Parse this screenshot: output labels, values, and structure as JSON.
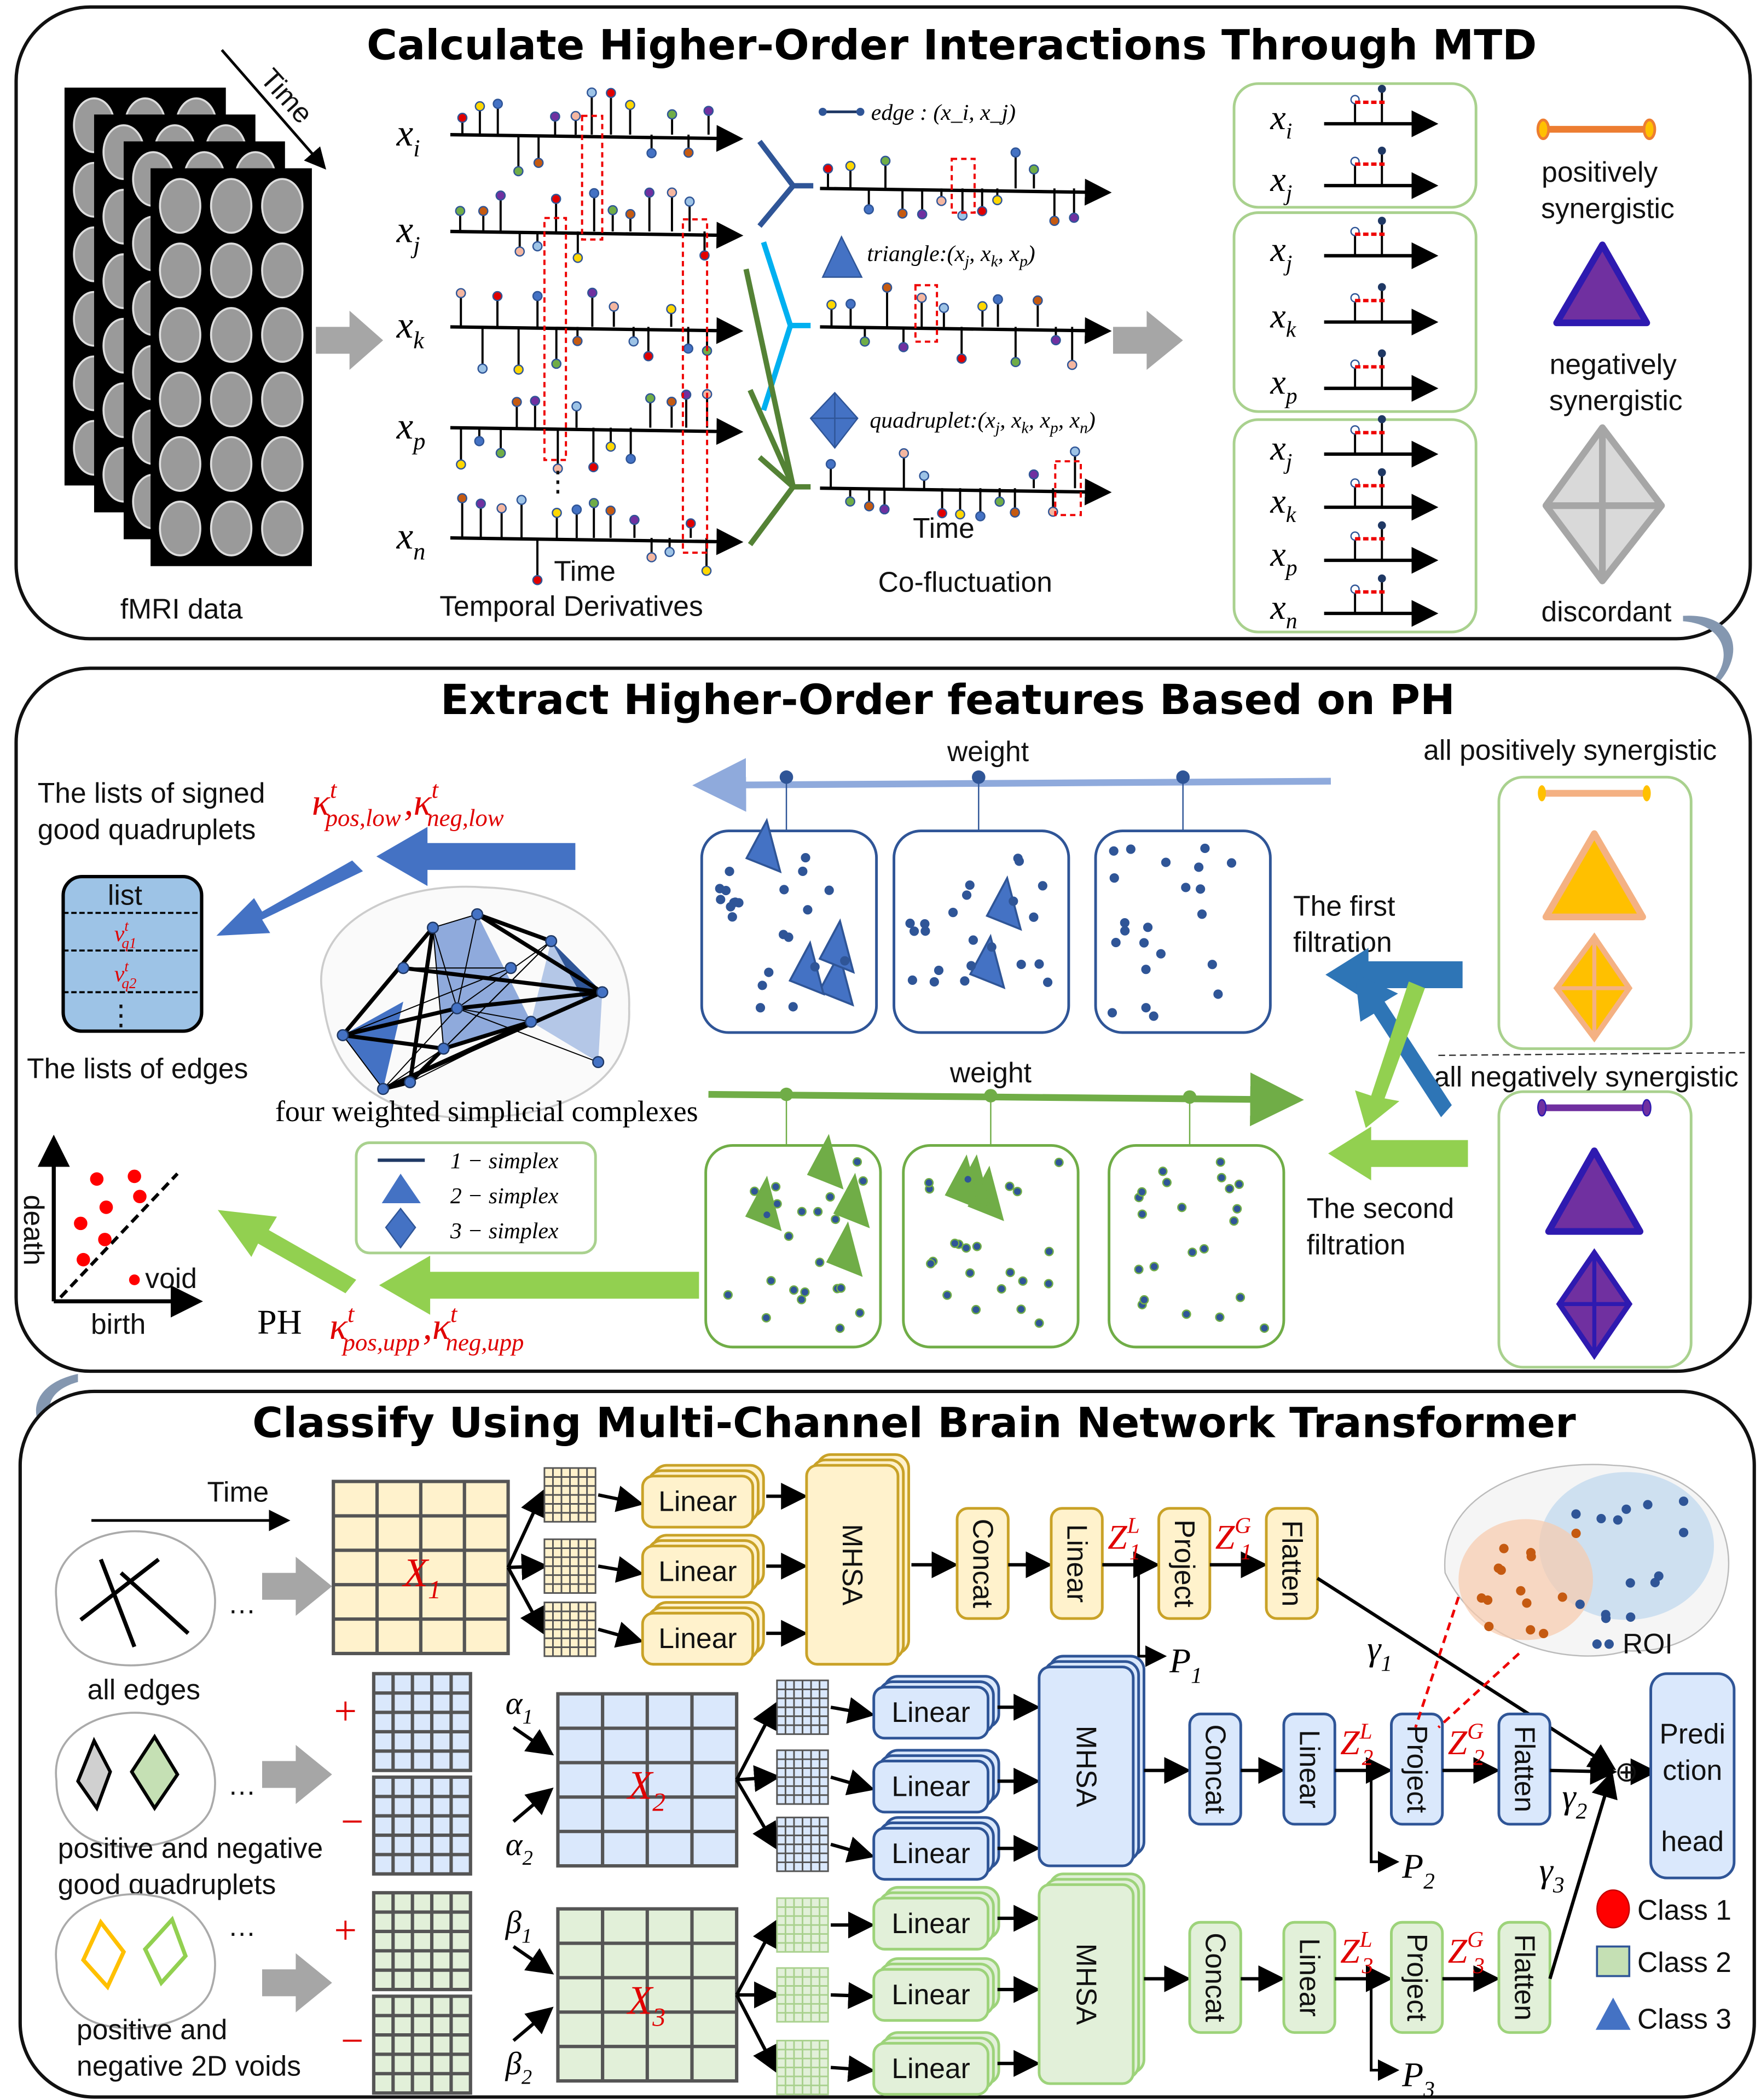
{
  "panel1": {
    "title": "Calculate Higher-Order Interactions Through MTD",
    "time_arrow_label": "Time",
    "fmri_label": "fMRI data",
    "signals": [
      {
        "base": "x",
        "sub": "i"
      },
      {
        "base": "x",
        "sub": "j"
      },
      {
        "base": "x",
        "sub": "k"
      },
      {
        "base": "x",
        "sub": "p"
      },
      {
        "base": "x",
        "sub": "n"
      }
    ],
    "ellipsis": "⋮",
    "signal_time_label": "Time",
    "temporal_label": "Temporal Derivatives",
    "edge_legend": {
      "name": "edge :",
      "tuple": "(x_i, x_j)",
      "subs": [
        "i",
        "j"
      ]
    },
    "triangle_legend": {
      "name": "triangle:",
      "subs": [
        "j",
        "k",
        "p"
      ]
    },
    "quadruplet_legend": {
      "name": "quadruplet:",
      "subs": [
        "j",
        "k",
        "p",
        "n"
      ]
    },
    "cofluct_time_label": "Time",
    "cofluct_label": "Co-fluctuation",
    "right_boxes": [
      {
        "subs": [
          "i",
          "j"
        ]
      },
      {
        "subs": [
          "j",
          "k",
          "p"
        ]
      },
      {
        "subs": [
          "j",
          "k",
          "p",
          "n"
        ]
      }
    ],
    "legend": {
      "positive": [
        "positively",
        "synergistic"
      ],
      "negative": [
        "negatively",
        "synergistic"
      ],
      "discordant": "discordant"
    }
  },
  "panel2": {
    "title": "Extract Higher-Order features Based on PH",
    "weight_top": "weight",
    "weight_bottom": "weight",
    "lists_signed": [
      "The lists of signed",
      "good quadruplets"
    ],
    "kappa_low": [
      {
        "sym": "κ",
        "sup": "t",
        "sub": "pos,low"
      },
      {
        "sym": "κ",
        "sup": "t",
        "sub": "neg,low"
      }
    ],
    "kappa_upp": [
      {
        "sym": "κ",
        "sup": "t",
        "sub": "pos,upp"
      },
      {
        "sym": "κ",
        "sup": "t",
        "sub": "neg,upp"
      }
    ],
    "kappa_sep": ",",
    "list_box": {
      "header": "list",
      "items": [
        {
          "sym": "v",
          "sup": "t",
          "sub": "q1"
        },
        {
          "sym": "v",
          "sup": "t",
          "sub": "q2"
        }
      ],
      "ellipsis": "⋮"
    },
    "lists_edges": "The lists of edges",
    "complexes_label": "four weighted simplicial complexes",
    "simplex_legend": [
      "1 − simplex",
      "2 − simplex",
      "3 − simplex"
    ],
    "first_filtration": [
      "The first",
      "filtration"
    ],
    "second_filtration": [
      "The second",
      "filtration"
    ],
    "all_positive": "all positively synergistic",
    "all_negative": "all negatively synergistic",
    "persistence": {
      "ylabel": "death",
      "xlabel": "birth",
      "void": "void"
    },
    "ph_label": "PH"
  },
  "panel3": {
    "title": "Classify Using Multi-Channel Brain Network Transformer",
    "time_label": "Time",
    "ellipsis": "…",
    "rows": [
      {
        "label": [
          "all edges"
        ],
        "matrix": {
          "base": "X",
          "sub": "1"
        },
        "zl": {
          "base": "Z",
          "sup": "L",
          "sub": "1"
        },
        "zg": {
          "base": "Z",
          "sup": "G",
          "sub": "1"
        },
        "p": {
          "base": "P",
          "sub": "1"
        },
        "gamma": {
          "base": "γ",
          "sub": "1"
        }
      },
      {
        "label": [
          "positive and negative",
          "good quadruplets"
        ],
        "matrix": {
          "base": "X",
          "sub": "2"
        },
        "zl": {
          "base": "Z",
          "sup": "L",
          "sub": "2"
        },
        "zg": {
          "base": "Z",
          "sup": "G",
          "sub": "2"
        },
        "p": {
          "base": "P",
          "sub": "2"
        },
        "gamma": {
          "base": "γ",
          "sub": "2"
        },
        "plus": "+",
        "minus": "−",
        "w1": {
          "base": "α",
          "sub": "1"
        },
        "w2": {
          "base": "α",
          "sub": "2"
        }
      },
      {
        "label": [
          "positive and",
          "negative 2D voids"
        ],
        "matrix": {
          "base": "X",
          "sub": "3"
        },
        "zl": {
          "base": "Z",
          "sup": "L",
          "sub": "3"
        },
        "zg": {
          "base": "Z",
          "sup": "G",
          "sub": "3"
        },
        "p": {
          "base": "P",
          "sub": "3"
        },
        "gamma": {
          "base": "γ",
          "sub": "3"
        },
        "plus": "+",
        "minus": "−",
        "w1": {
          "base": "β",
          "sub": "1"
        },
        "w2": {
          "base": "β",
          "sub": "2"
        }
      }
    ],
    "linear": "Linear",
    "mhsa": "MHSA",
    "concat": "Concat",
    "linear2": "Linear",
    "project": "Project",
    "flatten": "Flatten",
    "oplus": "⊕",
    "prediction_head": [
      "Predi",
      "ction",
      "head"
    ],
    "roi_label": "ROI",
    "classes": [
      "Class 1",
      "Class 2",
      "Class 3"
    ],
    "colors": {
      "row1_fill": "#fff2cc",
      "row1_stroke": "#c9a227",
      "row2_fill": "#dae8fc",
      "row2_stroke": "#2f5597",
      "row3_fill": "#e2f0d9",
      "row3_stroke": "#9dd37a",
      "class1": "#ff0000",
      "class2": "#c5e0b4",
      "class3": "#4472c4"
    }
  }
}
